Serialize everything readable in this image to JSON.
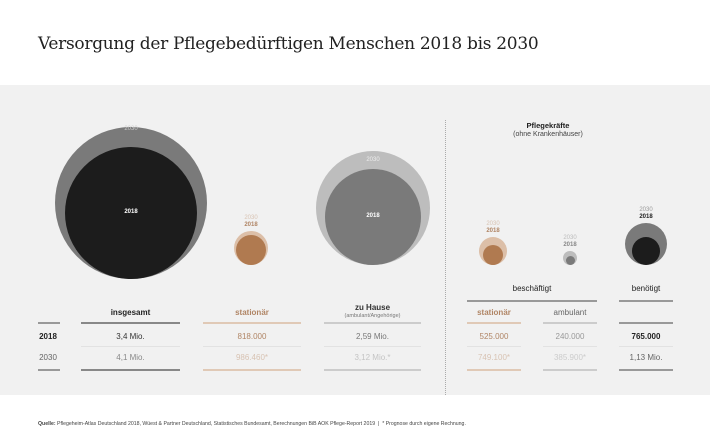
{
  "title": "Versorgung der Pflegebedürftigen Menschen 2018 bis 2030",
  "colors": {
    "dark": "#1c1c1c",
    "gray": "#7a7a7a",
    "light_gray": "#bdbdbd",
    "brown": "#b07a50",
    "light_brown": "#dcbfa8",
    "brown_text": "#b08565",
    "pale_brown_text": "#d8c3b3"
  },
  "right_heading": "Pflegekräfte",
  "right_subheading": "(ohne Krankenhäuser)",
  "group_beschaeftigt": "beschäftigt",
  "group_benoetigt": "benötigt",
  "chart_data": {
    "type": "bubble",
    "title": "Versorgung der Pflegebedürftigen Menschen 2018 bis 2030",
    "years": [
      "2018",
      "2030"
    ],
    "categories": [
      {
        "name": "insgesamt",
        "v2018": 3400000,
        "v2030": 4100000,
        "label2018": "3,4 Mio.",
        "label2030": "4,1 Mio."
      },
      {
        "name": "stationär",
        "v2018": 818000,
        "v2030": 986460,
        "label2018": "818.000",
        "label2030": "986.460*"
      },
      {
        "name": "zu Hause",
        "sub": "(ambulant/Angehörige)",
        "v2018": 2590000,
        "v2030": 3120000,
        "label2018": "2,59 Mio.",
        "label2030": "3,12 Mio.*"
      },
      {
        "name": "stationär",
        "v2018": 525000,
        "v2030": 749100,
        "label2018": "525.000",
        "label2030": "749.100*"
      },
      {
        "name": "ambulant",
        "v2018": 240000,
        "v2030": 385900,
        "label2018": "240.000",
        "label2030": "385.900*"
      },
      {
        "name": "",
        "v2018": 765000,
        "v2030": 1130000,
        "label2018": "765.000",
        "label2030": "1,13 Mio."
      }
    ]
  },
  "footer": {
    "source_label": "Quelle:",
    "source": "Pflegeheim-Atlas Deutschland 2018, Wüest & Partner Deutschland, Statistisches Bundesamt, Berechnungen BiB AOK Pflege-Report 2019",
    "sep": "|",
    "note": "* Prognose durch eigene Rechnung."
  }
}
